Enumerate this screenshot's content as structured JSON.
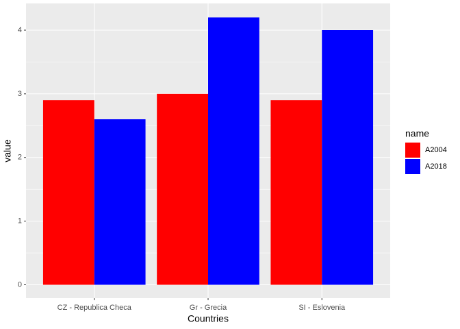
{
  "chart_data": {
    "type": "bar",
    "categories": [
      "CZ - Republica Checa",
      "Gr - Grecia",
      "SI - Eslovenia"
    ],
    "series": [
      {
        "name": "A2004",
        "color": "#ff0000",
        "values": [
          2.9,
          3.0,
          2.9
        ]
      },
      {
        "name": "A2018",
        "color": "#0000ff",
        "values": [
          2.6,
          4.2,
          4.0
        ]
      }
    ],
    "x_label": "Countries",
    "y_label": "value",
    "legend_title": "name",
    "ylim": [
      -0.21,
      4.42
    ],
    "yticks": [
      0,
      1,
      2,
      3,
      4
    ],
    "grid": true,
    "legend_position": "right"
  }
}
